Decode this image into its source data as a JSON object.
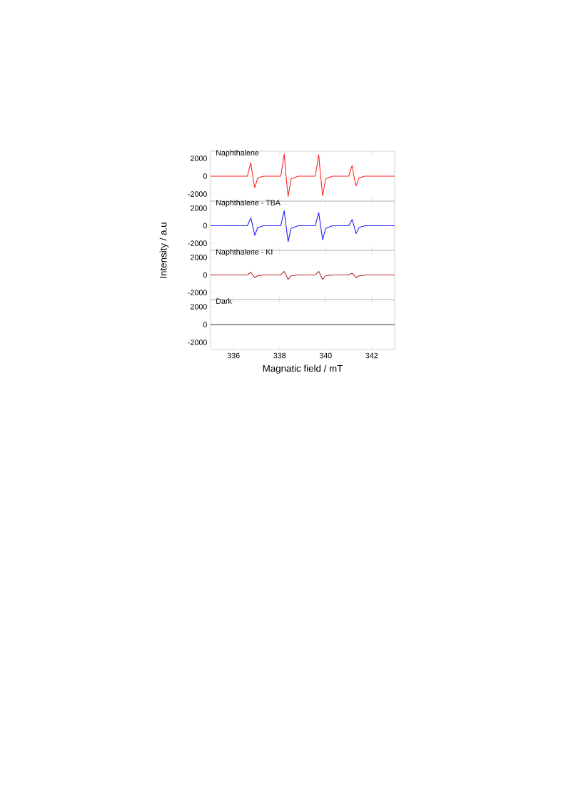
{
  "chart_data": [
    {
      "type": "line",
      "title": "Naphthalene",
      "xlim": [
        335,
        343
      ],
      "ylim": [
        -2800,
        2800
      ],
      "xticks": [
        336,
        338,
        340,
        342
      ],
      "yticks": [
        -2000,
        0,
        2000
      ],
      "tick_labels": "y",
      "series": [
        {
          "color": "#ff2020",
          "x": [
            335,
            336.6,
            336.75,
            336.83,
            336.92,
            337.05,
            337.3,
            338.05,
            338.2,
            338.28,
            338.37,
            338.5,
            338.8,
            339.55,
            339.7,
            339.78,
            339.87,
            340.0,
            340.3,
            341.0,
            341.15,
            341.23,
            341.32,
            341.45,
            341.7,
            343
          ],
          "values": [
            0,
            0,
            1500,
            0,
            -1300,
            -200,
            0,
            0,
            2500,
            0,
            -2300,
            -300,
            0,
            0,
            2400,
            0,
            -2200,
            -300,
            0,
            0,
            1200,
            0,
            -1100,
            -200,
            0,
            0
          ]
        }
      ]
    },
    {
      "type": "line",
      "title": "Naphthalene - TBA",
      "ylabel": "Intensity / a.u",
      "xlim": [
        335,
        343
      ],
      "ylim": [
        -2800,
        2800
      ],
      "xticks": [
        336,
        338,
        340,
        342
      ],
      "yticks": [
        -2000,
        0,
        2000
      ],
      "tick_labels": "y",
      "series": [
        {
          "color": "#1a1aff",
          "x": [
            335,
            336.6,
            336.75,
            336.83,
            336.92,
            337.05,
            337.3,
            338.05,
            338.2,
            338.28,
            338.37,
            338.5,
            338.8,
            339.55,
            339.7,
            339.78,
            339.87,
            340.0,
            340.3,
            341.0,
            341.15,
            341.23,
            341.32,
            341.45,
            341.7,
            343
          ],
          "values": [
            0,
            0,
            900,
            0,
            -1100,
            -200,
            0,
            0,
            1700,
            0,
            -1800,
            -300,
            0,
            0,
            1500,
            0,
            -1600,
            -300,
            0,
            0,
            700,
            0,
            -900,
            -200,
            0,
            0
          ]
        }
      ]
    },
    {
      "type": "line",
      "title": "Naphthalene - KI",
      "xlim": [
        335,
        343
      ],
      "ylim": [
        -2800,
        2800
      ],
      "xticks": [
        336,
        338,
        340,
        342
      ],
      "yticks": [
        -2000,
        0,
        2000
      ],
      "tick_labels": "y",
      "series": [
        {
          "color": "#b22222",
          "x": [
            335,
            336.6,
            336.75,
            336.83,
            336.92,
            337.05,
            337.3,
            338.05,
            338.2,
            338.28,
            338.37,
            338.5,
            338.8,
            339.55,
            339.7,
            339.78,
            339.87,
            340.0,
            340.3,
            341.0,
            341.15,
            341.23,
            341.32,
            341.45,
            341.7,
            343
          ],
          "values": [
            0,
            0,
            300,
            0,
            -300,
            -100,
            0,
            0,
            400,
            0,
            -500,
            -100,
            0,
            0,
            400,
            0,
            -500,
            -100,
            0,
            0,
            200,
            0,
            -300,
            -100,
            0,
            0
          ]
        }
      ]
    },
    {
      "type": "line",
      "title": "Dark",
      "xlabel": "Magnatic field / mT",
      "xlim": [
        335,
        343
      ],
      "ylim": [
        -2800,
        2800
      ],
      "xticks": [
        336,
        338,
        340,
        342
      ],
      "yticks": [
        -2000,
        0,
        2000
      ],
      "series": [
        {
          "color": "#333333",
          "x": [
            335,
            336,
            337,
            338,
            339,
            340,
            341,
            342,
            343
          ],
          "values": [
            0,
            0,
            0,
            0,
            0,
            0,
            0,
            0,
            0
          ]
        }
      ]
    }
  ]
}
